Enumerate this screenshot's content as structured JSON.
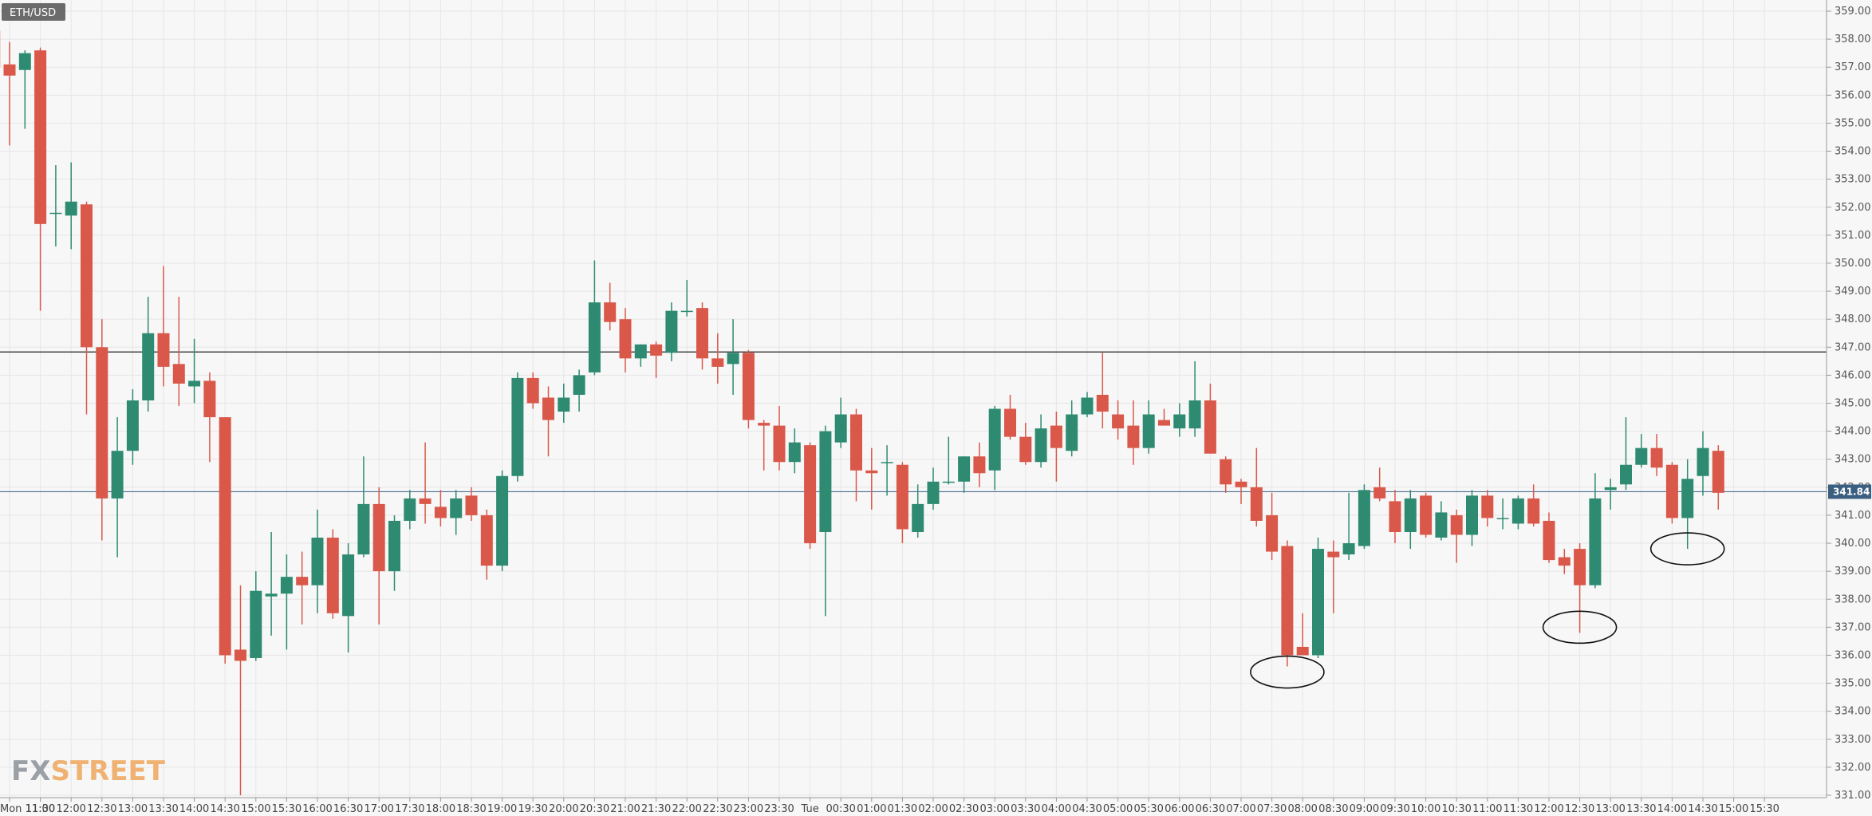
{
  "ticker": "ETH/USD",
  "logo": {
    "fx": "FX",
    "street": "STREET"
  },
  "colors": {
    "up": "#2e8b72",
    "down": "#d9584a",
    "grid": "#e6e6e6",
    "axis": "#999999",
    "resistance_line": "#222222",
    "current_line": "#4a6f8f",
    "price_tag": "#3b5f80",
    "badge": "#6b6b6b",
    "logo_fx": "#9aa0a6",
    "logo_street": "#f0b273"
  },
  "chart_data": {
    "type": "candlestick",
    "title": "",
    "timeframe_minutes": 15,
    "ylim": [
      331.0,
      359.0
    ],
    "y_ticks": [
      "331.00",
      "332.00",
      "333.00",
      "334.00",
      "335.00",
      "336.00",
      "337.00",
      "338.00",
      "339.00",
      "340.00",
      "341.00",
      "342.00",
      "343.00",
      "344.00",
      "345.00",
      "346.00",
      "347.00",
      "348.00",
      "349.00",
      "350.00",
      "351.00",
      "352.00",
      "353.00",
      "354.00",
      "355.00",
      "356.00",
      "357.00",
      "358.00",
      "359.00"
    ],
    "x_ticks": [
      "Mon 11:00",
      "11:30",
      "12:00",
      "12:30",
      "13:00",
      "13:30",
      "14:00",
      "14:30",
      "15:00",
      "15:30",
      "16:00",
      "16:30",
      "17:00",
      "17:30",
      "18:00",
      "18:30",
      "19:00",
      "19:30",
      "20:00",
      "20:30",
      "21:00",
      "21:30",
      "22:00",
      "22:30",
      "23:00",
      "23:30",
      "Tue",
      "00:30",
      "01:00",
      "01:30",
      "02:00",
      "02:30",
      "03:00",
      "03:30",
      "04:00",
      "04:30",
      "05:00",
      "05:30",
      "06:00",
      "06:30",
      "07:00",
      "07:30",
      "08:00",
      "08:30",
      "09:00",
      "09:30",
      "10:00",
      "10:30",
      "11:00",
      "11:30",
      "12:00",
      "12:30",
      "13:00",
      "13:30",
      "14:00",
      "14:30",
      "15:00",
      "15:30"
    ],
    "current_price": "341.84",
    "current_price_value": 341.84,
    "horizontal_lines": [
      346.83,
      341.84
    ],
    "annotations": [
      {
        "shape": "ellipse",
        "time": "Tue 07:45",
        "price": 335.4
      },
      {
        "shape": "ellipse",
        "time": "Tue 12:30",
        "price": 337.0
      },
      {
        "shape": "ellipse",
        "time": "Tue 14:15",
        "price": 339.8
      }
    ],
    "candles": [
      {
        "t": "Mon 10:45",
        "o": 358.3,
        "h": 358.5,
        "l": 356.8,
        "c": 357.0
      },
      {
        "t": "Mon 11:00",
        "o": 357.1,
        "h": 357.9,
        "l": 354.2,
        "c": 356.7
      },
      {
        "t": "Mon 11:15",
        "o": 356.9,
        "h": 357.6,
        "l": 354.8,
        "c": 357.5
      },
      {
        "t": "Mon 11:30",
        "o": 357.6,
        "h": 357.7,
        "l": 348.3,
        "c": 351.4
      },
      {
        "t": "Mon 11:45",
        "o": 351.8,
        "h": 353.5,
        "l": 350.6,
        "c": 351.8
      },
      {
        "t": "Mon 12:00",
        "o": 351.7,
        "h": 353.6,
        "l": 350.5,
        "c": 352.2
      },
      {
        "t": "Mon 12:15",
        "o": 352.1,
        "h": 352.2,
        "l": 344.6,
        "c": 347.0
      },
      {
        "t": "Mon 12:30",
        "o": 347.0,
        "h": 348.0,
        "l": 340.1,
        "c": 341.6
      },
      {
        "t": "Mon 12:45",
        "o": 341.6,
        "h": 344.5,
        "l": 339.5,
        "c": 343.3
      },
      {
        "t": "Mon 13:00",
        "o": 343.3,
        "h": 345.5,
        "l": 342.8,
        "c": 345.1
      },
      {
        "t": "Mon 13:15",
        "o": 345.1,
        "h": 348.8,
        "l": 344.7,
        "c": 347.5
      },
      {
        "t": "Mon 13:30",
        "o": 347.5,
        "h": 349.9,
        "l": 345.6,
        "c": 346.3
      },
      {
        "t": "Mon 13:45",
        "o": 346.4,
        "h": 348.8,
        "l": 344.9,
        "c": 345.7
      },
      {
        "t": "Mon 14:00",
        "o": 345.6,
        "h": 347.3,
        "l": 345.0,
        "c": 345.8
      },
      {
        "t": "Mon 14:15",
        "o": 345.8,
        "h": 346.1,
        "l": 342.9,
        "c": 344.5
      },
      {
        "t": "Mon 14:30",
        "o": 344.5,
        "h": 344.5,
        "l": 335.7,
        "c": 336.0
      },
      {
        "t": "Mon 14:45",
        "o": 336.2,
        "h": 338.5,
        "l": 331.0,
        "c": 335.8
      },
      {
        "t": "Mon 15:00",
        "o": 335.9,
        "h": 339.0,
        "l": 335.8,
        "c": 338.3
      },
      {
        "t": "Mon 15:15",
        "o": 338.1,
        "h": 340.4,
        "l": 336.7,
        "c": 338.2
      },
      {
        "t": "Mon 15:30",
        "o": 338.2,
        "h": 339.6,
        "l": 336.2,
        "c": 338.8
      },
      {
        "t": "Mon 15:45",
        "o": 338.8,
        "h": 339.7,
        "l": 337.1,
        "c": 338.5
      },
      {
        "t": "Mon 16:00",
        "o": 338.5,
        "h": 341.2,
        "l": 337.5,
        "c": 340.2
      },
      {
        "t": "Mon 16:15",
        "o": 340.2,
        "h": 340.5,
        "l": 337.3,
        "c": 337.5
      },
      {
        "t": "Mon 16:30",
        "o": 337.4,
        "h": 340.0,
        "l": 336.1,
        "c": 339.6
      },
      {
        "t": "Mon 16:45",
        "o": 339.6,
        "h": 343.1,
        "l": 339.5,
        "c": 341.4
      },
      {
        "t": "Mon 17:00",
        "o": 341.4,
        "h": 342.0,
        "l": 337.1,
        "c": 339.0
      },
      {
        "t": "Mon 17:15",
        "o": 339.0,
        "h": 341.0,
        "l": 338.3,
        "c": 340.8
      },
      {
        "t": "Mon 17:30",
        "o": 340.8,
        "h": 341.9,
        "l": 340.5,
        "c": 341.6
      },
      {
        "t": "Mon 17:45",
        "o": 341.6,
        "h": 343.6,
        "l": 340.7,
        "c": 341.4
      },
      {
        "t": "Mon 18:00",
        "o": 341.3,
        "h": 341.9,
        "l": 340.6,
        "c": 340.9
      },
      {
        "t": "Mon 18:15",
        "o": 340.9,
        "h": 341.9,
        "l": 340.3,
        "c": 341.6
      },
      {
        "t": "Mon 18:30",
        "o": 341.7,
        "h": 342.0,
        "l": 340.8,
        "c": 341.0
      },
      {
        "t": "Mon 18:45",
        "o": 341.0,
        "h": 341.2,
        "l": 338.7,
        "c": 339.2
      },
      {
        "t": "Mon 19:00",
        "o": 339.2,
        "h": 342.6,
        "l": 339.0,
        "c": 342.4
      },
      {
        "t": "Mon 19:15",
        "o": 342.4,
        "h": 346.1,
        "l": 342.2,
        "c": 345.9
      },
      {
        "t": "Mon 19:30",
        "o": 345.9,
        "h": 346.1,
        "l": 344.8,
        "c": 345.0
      },
      {
        "t": "Mon 19:45",
        "o": 345.2,
        "h": 345.6,
        "l": 343.1,
        "c": 344.4
      },
      {
        "t": "Mon 20:00",
        "o": 344.7,
        "h": 345.7,
        "l": 344.3,
        "c": 345.2
      },
      {
        "t": "Mon 20:15",
        "o": 345.3,
        "h": 346.2,
        "l": 344.7,
        "c": 346.0
      },
      {
        "t": "Mon 20:30",
        "o": 346.1,
        "h": 350.1,
        "l": 346.0,
        "c": 348.6
      },
      {
        "t": "Mon 20:45",
        "o": 348.6,
        "h": 349.3,
        "l": 347.6,
        "c": 347.9
      },
      {
        "t": "Mon 21:00",
        "o": 348.0,
        "h": 348.4,
        "l": 346.1,
        "c": 346.6
      },
      {
        "t": "Mon 21:15",
        "o": 346.6,
        "h": 347.1,
        "l": 346.3,
        "c": 347.1
      },
      {
        "t": "Mon 21:30",
        "o": 347.1,
        "h": 347.2,
        "l": 345.9,
        "c": 346.7
      },
      {
        "t": "Mon 21:45",
        "o": 346.8,
        "h": 348.6,
        "l": 346.5,
        "c": 348.3
      },
      {
        "t": "Mon 22:00",
        "o": 348.3,
        "h": 349.4,
        "l": 348.1,
        "c": 348.3
      },
      {
        "t": "Mon 22:15",
        "o": 348.4,
        "h": 348.6,
        "l": 346.2,
        "c": 346.6
      },
      {
        "t": "Mon 22:30",
        "o": 346.6,
        "h": 347.5,
        "l": 345.7,
        "c": 346.3
      },
      {
        "t": "Mon 22:45",
        "o": 346.4,
        "h": 348.0,
        "l": 345.3,
        "c": 346.8
      },
      {
        "t": "Mon 23:00",
        "o": 346.8,
        "h": 346.9,
        "l": 344.1,
        "c": 344.4
      },
      {
        "t": "Mon 23:15",
        "o": 344.3,
        "h": 344.4,
        "l": 342.6,
        "c": 344.2
      },
      {
        "t": "Mon 23:30",
        "o": 344.2,
        "h": 344.9,
        "l": 342.6,
        "c": 342.9
      },
      {
        "t": "Mon 23:45",
        "o": 342.9,
        "h": 344.1,
        "l": 342.5,
        "c": 343.6
      },
      {
        "t": "Tue 00:00",
        "o": 343.5,
        "h": 343.6,
        "l": 339.8,
        "c": 340.0
      },
      {
        "t": "Tue 00:15",
        "o": 340.4,
        "h": 344.2,
        "l": 337.4,
        "c": 344.0
      },
      {
        "t": "Tue 00:30",
        "o": 343.6,
        "h": 345.2,
        "l": 343.4,
        "c": 344.6
      },
      {
        "t": "Tue 00:45",
        "o": 344.6,
        "h": 344.8,
        "l": 341.5,
        "c": 342.6
      },
      {
        "t": "Tue 01:00",
        "o": 342.6,
        "h": 343.4,
        "l": 341.2,
        "c": 342.5
      },
      {
        "t": "Tue 01:15",
        "o": 342.9,
        "h": 343.5,
        "l": 341.7,
        "c": 342.9
      },
      {
        "t": "Tue 01:30",
        "o": 342.8,
        "h": 342.9,
        "l": 340.0,
        "c": 340.5
      },
      {
        "t": "Tue 01:45",
        "o": 340.4,
        "h": 342.1,
        "l": 340.2,
        "c": 341.4
      },
      {
        "t": "Tue 02:00",
        "o": 341.4,
        "h": 342.7,
        "l": 341.2,
        "c": 342.2
      },
      {
        "t": "Tue 02:15",
        "o": 342.2,
        "h": 343.8,
        "l": 342.1,
        "c": 342.2
      },
      {
        "t": "Tue 02:30",
        "o": 342.2,
        "h": 343.1,
        "l": 341.8,
        "c": 343.1
      },
      {
        "t": "Tue 02:45",
        "o": 343.1,
        "h": 343.6,
        "l": 342.0,
        "c": 342.5
      },
      {
        "t": "Tue 03:00",
        "o": 342.6,
        "h": 344.9,
        "l": 341.9,
        "c": 344.8
      },
      {
        "t": "Tue 03:15",
        "o": 344.8,
        "h": 345.3,
        "l": 343.7,
        "c": 343.8
      },
      {
        "t": "Tue 03:30",
        "o": 343.8,
        "h": 344.3,
        "l": 342.8,
        "c": 342.9
      },
      {
        "t": "Tue 03:45",
        "o": 342.9,
        "h": 344.6,
        "l": 342.7,
        "c": 344.1
      },
      {
        "t": "Tue 04:00",
        "o": 344.2,
        "h": 344.7,
        "l": 342.2,
        "c": 343.4
      },
      {
        "t": "Tue 04:15",
        "o": 343.3,
        "h": 345.1,
        "l": 343.1,
        "c": 344.6
      },
      {
        "t": "Tue 04:30",
        "o": 344.6,
        "h": 345.4,
        "l": 344.5,
        "c": 345.2
      },
      {
        "t": "Tue 04:45",
        "o": 345.3,
        "h": 346.8,
        "l": 344.1,
        "c": 344.7
      },
      {
        "t": "Tue 05:00",
        "o": 344.6,
        "h": 345.1,
        "l": 343.7,
        "c": 344.1
      },
      {
        "t": "Tue 05:15",
        "o": 344.2,
        "h": 345.1,
        "l": 342.8,
        "c": 343.4
      },
      {
        "t": "Tue 05:30",
        "o": 343.4,
        "h": 345.1,
        "l": 343.2,
        "c": 344.6
      },
      {
        "t": "Tue 05:45",
        "o": 344.4,
        "h": 344.8,
        "l": 344.2,
        "c": 344.2
      },
      {
        "t": "Tue 06:00",
        "o": 344.1,
        "h": 345.0,
        "l": 343.8,
        "c": 344.6
      },
      {
        "t": "Tue 06:15",
        "o": 344.1,
        "h": 346.5,
        "l": 343.8,
        "c": 345.1
      },
      {
        "t": "Tue 06:30",
        "o": 345.1,
        "h": 345.7,
        "l": 343.2,
        "c": 343.2
      },
      {
        "t": "Tue 06:45",
        "o": 343.0,
        "h": 343.1,
        "l": 341.8,
        "c": 342.1
      },
      {
        "t": "Tue 07:00",
        "o": 342.2,
        "h": 342.3,
        "l": 341.4,
        "c": 342.0
      },
      {
        "t": "Tue 07:15",
        "o": 342.0,
        "h": 343.4,
        "l": 340.6,
        "c": 340.8
      },
      {
        "t": "Tue 07:30",
        "o": 341.0,
        "h": 341.8,
        "l": 339.4,
        "c": 339.7
      },
      {
        "t": "Tue 07:45",
        "o": 339.9,
        "h": 340.1,
        "l": 335.6,
        "c": 336.0
      },
      {
        "t": "Tue 08:00",
        "o": 336.3,
        "h": 337.5,
        "l": 336.0,
        "c": 336.0
      },
      {
        "t": "Tue 08:15",
        "o": 336.0,
        "h": 340.2,
        "l": 335.9,
        "c": 339.8
      },
      {
        "t": "Tue 08:30",
        "o": 339.7,
        "h": 340.1,
        "l": 337.5,
        "c": 339.5
      },
      {
        "t": "Tue 08:45",
        "o": 339.6,
        "h": 341.8,
        "l": 339.4,
        "c": 340.0
      },
      {
        "t": "Tue 09:00",
        "o": 339.9,
        "h": 342.1,
        "l": 339.8,
        "c": 341.9
      },
      {
        "t": "Tue 09:15",
        "o": 342.0,
        "h": 342.7,
        "l": 341.5,
        "c": 341.6
      },
      {
        "t": "Tue 09:30",
        "o": 341.5,
        "h": 341.9,
        "l": 340.0,
        "c": 340.4
      },
      {
        "t": "Tue 09:45",
        "o": 340.4,
        "h": 341.9,
        "l": 339.8,
        "c": 341.6
      },
      {
        "t": "Tue 10:00",
        "o": 341.7,
        "h": 341.8,
        "l": 340.2,
        "c": 340.3
      },
      {
        "t": "Tue 10:15",
        "o": 340.2,
        "h": 341.5,
        "l": 340.1,
        "c": 341.1
      },
      {
        "t": "Tue 10:30",
        "o": 341.0,
        "h": 341.2,
        "l": 339.3,
        "c": 340.3
      },
      {
        "t": "Tue 10:45",
        "o": 340.3,
        "h": 341.9,
        "l": 339.9,
        "c": 341.7
      },
      {
        "t": "Tue 11:00",
        "o": 341.7,
        "h": 341.9,
        "l": 340.6,
        "c": 340.9
      },
      {
        "t": "Tue 11:15",
        "o": 340.9,
        "h": 341.6,
        "l": 340.5,
        "c": 340.9
      },
      {
        "t": "Tue 11:30",
        "o": 340.7,
        "h": 341.7,
        "l": 340.5,
        "c": 341.6
      },
      {
        "t": "Tue 11:45",
        "o": 341.6,
        "h": 342.1,
        "l": 340.6,
        "c": 340.7
      },
      {
        "t": "Tue 12:00",
        "o": 340.8,
        "h": 341.1,
        "l": 339.3,
        "c": 339.4
      },
      {
        "t": "Tue 12:15",
        "o": 339.5,
        "h": 339.8,
        "l": 338.9,
        "c": 339.2
      },
      {
        "t": "Tue 12:30",
        "o": 339.8,
        "h": 340.0,
        "l": 336.8,
        "c": 338.5
      },
      {
        "t": "Tue 12:45",
        "o": 338.5,
        "h": 342.5,
        "l": 338.4,
        "c": 341.6
      },
      {
        "t": "Tue 13:00",
        "o": 341.9,
        "h": 342.3,
        "l": 341.2,
        "c": 342.0
      },
      {
        "t": "Tue 13:15",
        "o": 342.1,
        "h": 344.5,
        "l": 341.9,
        "c": 342.8
      },
      {
        "t": "Tue 13:30",
        "o": 342.8,
        "h": 343.9,
        "l": 342.7,
        "c": 343.4
      },
      {
        "t": "Tue 13:45",
        "o": 343.4,
        "h": 343.9,
        "l": 342.4,
        "c": 342.7
      },
      {
        "t": "Tue 14:00",
        "o": 342.8,
        "h": 342.9,
        "l": 340.7,
        "c": 340.9
      },
      {
        "t": "Tue 14:15",
        "o": 340.9,
        "h": 343.0,
        "l": 339.8,
        "c": 342.3
      },
      {
        "t": "Tue 14:30",
        "o": 342.4,
        "h": 344.0,
        "l": 341.7,
        "c": 343.4
      },
      {
        "t": "Tue 14:45",
        "o": 343.3,
        "h": 343.5,
        "l": 341.2,
        "c": 341.8
      }
    ]
  }
}
